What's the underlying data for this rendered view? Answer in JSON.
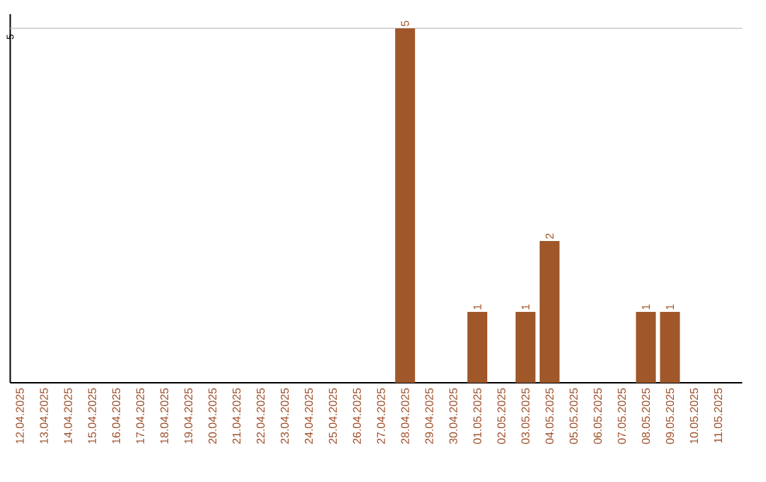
{
  "chart_data": {
    "type": "bar",
    "categories": [
      "12.04.2025",
      "13.04.2025",
      "14.04.2025",
      "15.04.2025",
      "16.04.2025",
      "17.04.2025",
      "18.04.2025",
      "19.04.2025",
      "20.04.2025",
      "21.04.2025",
      "22.04.2025",
      "23.04.2025",
      "24.04.2025",
      "25.04.2025",
      "26.04.2025",
      "27.04.2025",
      "28.04.2025",
      "29.04.2025",
      "30.04.2025",
      "01.05.2025",
      "02.05.2025",
      "03.05.2025",
      "04.05.2025",
      "05.05.2025",
      "06.05.2025",
      "07.05.2025",
      "08.05.2025",
      "09.05.2025",
      "10.05.2025",
      "11.05.2025"
    ],
    "values": [
      null,
      null,
      null,
      null,
      null,
      null,
      null,
      null,
      null,
      null,
      null,
      null,
      null,
      null,
      null,
      null,
      5,
      null,
      null,
      1,
      null,
      1,
      2,
      null,
      null,
      null,
      1,
      1,
      null,
      null
    ],
    "data_labels": true,
    "color": "#a0572a",
    "ref_lines": [
      {
        "axis": "y",
        "value": 5,
        "label": "5",
        "color": "#c8c8c8"
      }
    ]
  }
}
